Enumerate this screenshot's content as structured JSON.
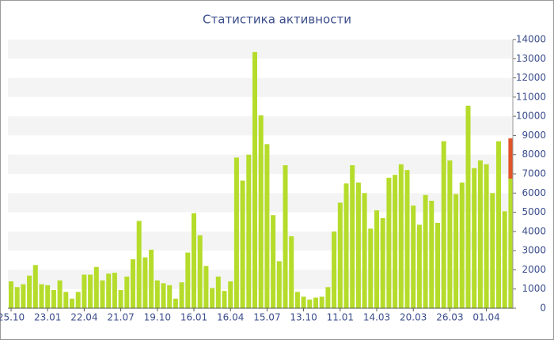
{
  "chart_data": {
    "type": "bar",
    "title": "Статистика активности",
    "categories": [
      "25.10",
      null,
      null,
      null,
      null,
      null,
      "23.01",
      null,
      null,
      null,
      null,
      null,
      "22.04",
      null,
      null,
      null,
      null,
      null,
      "21.07",
      null,
      null,
      null,
      null,
      null,
      "19.10",
      null,
      null,
      null,
      null,
      null,
      "16.01",
      null,
      null,
      null,
      null,
      null,
      "16.04",
      null,
      null,
      null,
      null,
      null,
      "15.07",
      null,
      null,
      null,
      null,
      null,
      "13.10",
      null,
      null,
      null,
      null,
      null,
      "11.01",
      null,
      null,
      null,
      null,
      null,
      "14.03",
      null,
      null,
      null,
      null,
      null,
      "20.03",
      null,
      null,
      null,
      null,
      null,
      "26.03",
      null,
      null,
      null,
      null,
      null,
      "01.04",
      null,
      null,
      null,
      null
    ],
    "series": [
      {
        "color": "#b5dc2b",
        "values": [
          1400,
          1100,
          1250,
          1700,
          2250,
          1250,
          1200,
          950,
          1450,
          850,
          500,
          850,
          1750,
          1750,
          2150,
          1450,
          1800,
          1850,
          950,
          1650,
          2550,
          4550,
          2650,
          3050,
          1450,
          1300,
          1200,
          500,
          1350,
          2900,
          4950,
          3800,
          2200,
          1050,
          1650,
          900,
          1400,
          7850,
          6650,
          8000,
          13350,
          10050,
          8550,
          4850,
          2450,
          7450,
          3750,
          850,
          600,
          450,
          550,
          600,
          1100,
          4000,
          5500,
          6500,
          7450,
          6550,
          6000,
          4150,
          5100,
          4700,
          6800,
          6950,
          7500,
          7200,
          5350,
          4350,
          5900,
          5600,
          4450,
          8700,
          7700,
          5950,
          6550,
          10550,
          7300,
          7700,
          7500,
          6000,
          8700,
          5050,
          6750
        ]
      },
      {
        "color": "#e0542a",
        "values": [
          null,
          null,
          null,
          null,
          null,
          null,
          null,
          null,
          null,
          null,
          null,
          null,
          null,
          null,
          null,
          null,
          null,
          null,
          null,
          null,
          null,
          null,
          null,
          null,
          null,
          null,
          null,
          null,
          null,
          null,
          null,
          null,
          null,
          null,
          null,
          null,
          null,
          null,
          null,
          null,
          null,
          null,
          null,
          null,
          null,
          null,
          null,
          null,
          null,
          null,
          null,
          null,
          null,
          null,
          null,
          null,
          null,
          null,
          null,
          null,
          null,
          null,
          null,
          null,
          null,
          null,
          null,
          null,
          null,
          null,
          null,
          null,
          null,
          null,
          null,
          null,
          null,
          null,
          null,
          null,
          null,
          null,
          2100
        ]
      }
    ],
    "ylim": [
      0,
      14000
    ],
    "yticks": [
      0,
      1000,
      2000,
      3000,
      4000,
      5000,
      6000,
      7000,
      8000,
      9000,
      10000,
      11000,
      12000,
      13000,
      14000
    ],
    "grid": true,
    "stacked": true
  }
}
